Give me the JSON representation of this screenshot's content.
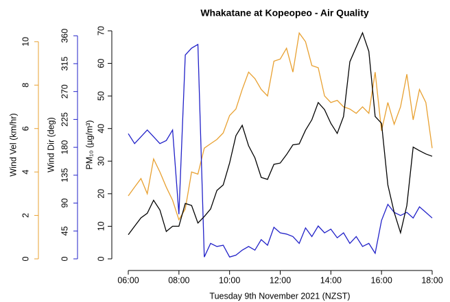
{
  "chart_data": {
    "type": "line",
    "title": "Whakatane at Kopeopeo - Air Quality",
    "x_label": "Tuesday 9th November 2021 (NZST)",
    "x": [
      6,
      6.25,
      6.5,
      6.75,
      7,
      7.25,
      7.5,
      7.75,
      8,
      8.25,
      8.5,
      8.75,
      9,
      9.25,
      9.5,
      9.75,
      10,
      10.25,
      10.5,
      10.75,
      11,
      11.25,
      11.5,
      11.75,
      12,
      12.25,
      12.5,
      12.75,
      13,
      13.25,
      13.5,
      13.75,
      14,
      14.25,
      14.5,
      14.75,
      15,
      15.25,
      15.5,
      15.75,
      16,
      16.25,
      16.5,
      16.75,
      17,
      17.25,
      17.5,
      17.75,
      18
    ],
    "xlim": [
      6,
      18
    ],
    "xticks": [
      {
        "value": 6,
        "label": "06:00"
      },
      {
        "value": 8,
        "label": "08:00"
      },
      {
        "value": 10,
        "label": "10:00"
      },
      {
        "value": 12,
        "label": "12:00"
      },
      {
        "value": 14,
        "label": "14:00"
      },
      {
        "value": 16,
        "label": "16:00"
      },
      {
        "value": 18,
        "label": "18:00"
      }
    ],
    "axes": [
      {
        "label": "Wind Vel (km/hr)",
        "color": "#e8a030",
        "ylim": [
          0,
          10.5
        ],
        "yticks": [
          0,
          2,
          4,
          6,
          8,
          10
        ]
      },
      {
        "label": "Wind Dir (deg)",
        "color": "#2020c8",
        "ylim": [
          0,
          368
        ],
        "yticks": [
          0,
          45,
          90,
          135,
          180,
          225,
          270,
          315,
          360
        ]
      },
      {
        "label": "PM₁₀ (µg/m³)",
        "color": "#000000",
        "ylim": [
          0,
          70
        ],
        "yticks": [
          0,
          10,
          20,
          30,
          40,
          50,
          60,
          70
        ]
      }
    ],
    "series": [
      {
        "axis": 0,
        "color": "#e8a030",
        "values": [
          2.9,
          3.3,
          3.7,
          3.0,
          4.6,
          4.0,
          3.3,
          2.7,
          1.8,
          2.3,
          4.0,
          3.9,
          5.1,
          5.3,
          5.5,
          5.8,
          6.6,
          6.9,
          7.8,
          8.6,
          8.3,
          7.8,
          7.5,
          9.1,
          9.2,
          9.7,
          8.6,
          10.4,
          10.0,
          8.9,
          8.8,
          7.5,
          7.2,
          7.3,
          7.0,
          6.9,
          6.7,
          7.0,
          6.7,
          8.6,
          5.9,
          7.2,
          6.2,
          7.0,
          8.5,
          6.4,
          7.8,
          7.2,
          5.1
        ]
      },
      {
        "axis": 1,
        "color": "#2020c8",
        "values": [
          202,
          186,
          197,
          208,
          197,
          186,
          191,
          208,
          72,
          329,
          340,
          346,
          3,
          25,
          20,
          22,
          3,
          6,
          14,
          20,
          14,
          31,
          22,
          51,
          42,
          40,
          36,
          25,
          50,
          36,
          53,
          42,
          48,
          34,
          42,
          25,
          36,
          20,
          25,
          9,
          62,
          88,
          75,
          70,
          75,
          66,
          84,
          75,
          66
        ]
      },
      {
        "axis": 2,
        "color": "#000000",
        "values": [
          7.4,
          10,
          12.6,
          14,
          18,
          15,
          8.4,
          10,
          10,
          17,
          16.4,
          11,
          13,
          15.3,
          21,
          22.7,
          29.4,
          37.8,
          41,
          34.7,
          31,
          25,
          24.4,
          29,
          29.4,
          32,
          35,
          35.3,
          39.5,
          42.7,
          48,
          45.8,
          41.6,
          38.5,
          43.7,
          60.5,
          65,
          69.4,
          63.7,
          43.7,
          41.6,
          22.7,
          14.3,
          8,
          16.4,
          34.3,
          33.2,
          32.2,
          31.5
        ]
      }
    ]
  }
}
